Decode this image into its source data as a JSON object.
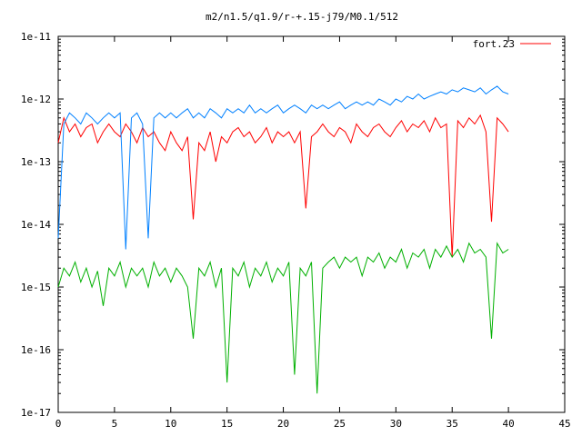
{
  "chart_data": {
    "type": "line",
    "title": "m2/n1.5/q1.9/r-+.15-j79/M0.1/512",
    "xlabel": "",
    "ylabel": "",
    "xlim": [
      0,
      45
    ],
    "ylim": [
      1e-17,
      1e-11
    ],
    "yscale": "log",
    "x_ticks": [
      0,
      5,
      10,
      15,
      20,
      25,
      30,
      35,
      40,
      45
    ],
    "x_tick_labels": [
      "0",
      "5",
      "10",
      "15",
      "20",
      "25",
      "30",
      "35",
      "40",
      "45"
    ],
    "y_ticks": [
      1e-17,
      1e-16,
      1e-15,
      1e-14,
      1e-13,
      1e-12,
      1e-11
    ],
    "y_tick_labels": [
      "1e-17",
      "1e-16",
      "1e-15",
      "1e-14",
      "1e-13",
      "1e-12",
      "1e-11"
    ],
    "grid": false,
    "legend_position": "top-right",
    "legend": [
      "fort.23"
    ],
    "colors": {
      "red": "#ff0000",
      "blue": "#0080ff",
      "green": "#00b000",
      "axis": "#000000"
    },
    "series": [
      {
        "color": "#ff0000",
        "x": [
          0,
          0.5,
          1,
          1.5,
          2,
          2.5,
          3,
          3.5,
          4,
          4.5,
          5,
          5.5,
          6,
          6.5,
          7,
          7.5,
          8,
          8.5,
          9,
          9.5,
          10,
          10.5,
          11,
          11.5,
          12,
          12.5,
          13,
          13.5,
          14,
          14.5,
          15,
          15.5,
          16,
          16.5,
          17,
          17.5,
          18,
          18.5,
          19,
          19.5,
          20,
          20.5,
          21,
          21.5,
          22,
          22.5,
          23,
          23.5,
          24,
          24.5,
          25,
          25.5,
          26,
          26.5,
          27,
          27.5,
          28,
          28.5,
          29,
          29.5,
          30,
          30.5,
          31,
          31.5,
          32,
          32.5,
          33,
          33.5,
          34,
          34.5,
          35,
          35.5,
          36,
          36.5,
          37,
          37.5,
          38,
          38.5,
          39,
          39.5,
          40
        ],
        "y": [
          2e-13,
          5e-13,
          3e-13,
          4e-13,
          2.5e-13,
          3.5e-13,
          4e-13,
          2e-13,
          3e-13,
          4e-13,
          3e-13,
          2.5e-13,
          4e-13,
          3e-13,
          2e-13,
          3.5e-13,
          2.5e-13,
          3e-13,
          2e-13,
          1.5e-13,
          3e-13,
          2e-13,
          1.5e-13,
          2.5e-13,
          1.2e-14,
          2e-13,
          1.5e-13,
          3e-13,
          1e-13,
          2.5e-13,
          2e-13,
          3e-13,
          3.5e-13,
          2.5e-13,
          3e-13,
          2e-13,
          2.5e-13,
          3.5e-13,
          2e-13,
          3e-13,
          2.5e-13,
          3e-13,
          2e-13,
          3e-13,
          1.8e-14,
          2.5e-13,
          3e-13,
          4e-13,
          3e-13,
          2.5e-13,
          3.5e-13,
          3e-13,
          2e-13,
          4e-13,
          3e-13,
          2.5e-13,
          3.5e-13,
          4e-13,
          3e-13,
          2.5e-13,
          3.5e-13,
          4.5e-13,
          3e-13,
          4e-13,
          3.5e-13,
          4.5e-13,
          3e-13,
          5e-13,
          3.5e-13,
          4e-13,
          3e-15,
          4.5e-13,
          3.5e-13,
          5e-13,
          4e-13,
          5.5e-13,
          3e-13,
          1.1e-14,
          5e-13,
          4e-13,
          3e-13
        ]
      },
      {
        "color": "#0080ff",
        "x": [
          0,
          0.5,
          1,
          1.5,
          2,
          2.5,
          3,
          3.5,
          4,
          4.5,
          5,
          5.5,
          6,
          6.5,
          7,
          7.5,
          8,
          8.5,
          9,
          9.5,
          10,
          10.5,
          11,
          11.5,
          12,
          12.5,
          13,
          13.5,
          14,
          14.5,
          15,
          15.5,
          16,
          16.5,
          17,
          17.5,
          18,
          18.5,
          19,
          19.5,
          20,
          20.5,
          21,
          21.5,
          22,
          22.5,
          23,
          23.5,
          24,
          24.5,
          25,
          25.5,
          26,
          26.5,
          27,
          27.5,
          28,
          28.5,
          29,
          29.5,
          30,
          30.5,
          31,
          31.5,
          32,
          32.5,
          33,
          33.5,
          34,
          34.5,
          35,
          35.5,
          36,
          36.5,
          37,
          37.5,
          38,
          38.5,
          39,
          39.5,
          40
        ],
        "y": [
          6e-15,
          4e-13,
          6e-13,
          5e-13,
          4e-13,
          6e-13,
          5e-13,
          4e-13,
          5e-13,
          6e-13,
          5e-13,
          6e-13,
          4e-15,
          5e-13,
          6e-13,
          4e-13,
          6e-15,
          5e-13,
          6e-13,
          5e-13,
          6e-13,
          5e-13,
          6e-13,
          7e-13,
          5e-13,
          6e-13,
          5e-13,
          7e-13,
          6e-13,
          5e-13,
          7e-13,
          6e-13,
          7e-13,
          6e-13,
          8e-13,
          6e-13,
          7e-13,
          6e-13,
          7e-13,
          8e-13,
          6e-13,
          7e-13,
          8e-13,
          7e-13,
          6e-13,
          8e-13,
          7e-13,
          8e-13,
          7e-13,
          8e-13,
          9e-13,
          7e-13,
          8e-13,
          9e-13,
          8e-13,
          9e-13,
          8e-13,
          1e-12,
          9e-13,
          8e-13,
          1e-12,
          9e-13,
          1.1e-12,
          1e-12,
          1.2e-12,
          1e-12,
          1.1e-12,
          1.2e-12,
          1.3e-12,
          1.2e-12,
          1.4e-12,
          1.3e-12,
          1.5e-12,
          1.4e-12,
          1.3e-12,
          1.5e-12,
          1.2e-12,
          1.4e-12,
          1.6e-12,
          1.3e-12,
          1.2e-12
        ]
      },
      {
        "color": "#00b000",
        "x": [
          0,
          0.5,
          1,
          1.5,
          2,
          2.5,
          3,
          3.5,
          4,
          4.5,
          5,
          5.5,
          6,
          6.5,
          7,
          7.5,
          8,
          8.5,
          9,
          9.5,
          10,
          10.5,
          11,
          11.5,
          12,
          12.5,
          13,
          13.5,
          14,
          14.5,
          15,
          15.5,
          16,
          16.5,
          17,
          17.5,
          18,
          18.5,
          19,
          19.5,
          20,
          20.5,
          21,
          21.5,
          22,
          22.5,
          23,
          23.5,
          24,
          24.5,
          25,
          25.5,
          26,
          26.5,
          27,
          27.5,
          28,
          28.5,
          29,
          29.5,
          30,
          30.5,
          31,
          31.5,
          32,
          32.5,
          33,
          33.5,
          34,
          34.5,
          35,
          35.5,
          36,
          36.5,
          37,
          37.5,
          38,
          38.5,
          39,
          39.5,
          40
        ],
        "y": [
          1e-15,
          2e-15,
          1.5e-15,
          2.5e-15,
          1.2e-15,
          2e-15,
          1e-15,
          1.8e-15,
          5e-16,
          2e-15,
          1.5e-15,
          2.5e-15,
          1e-15,
          2e-15,
          1.5e-15,
          2e-15,
          1e-15,
          2.5e-15,
          1.5e-15,
          2e-15,
          1.2e-15,
          2e-15,
          1.5e-15,
          1e-15,
          1.5e-16,
          2e-15,
          1.5e-15,
          2.5e-15,
          1e-15,
          2e-15,
          3e-17,
          2e-15,
          1.5e-15,
          2.5e-15,
          1e-15,
          2e-15,
          1.5e-15,
          2.5e-15,
          1.2e-15,
          2e-15,
          1.5e-15,
          2.5e-15,
          4e-17,
          2e-15,
          1.5e-15,
          2.5e-15,
          2e-17,
          2e-15,
          2.5e-15,
          3e-15,
          2e-15,
          3e-15,
          2.5e-15,
          3e-15,
          1.5e-15,
          3e-15,
          2.5e-15,
          3.5e-15,
          2e-15,
          3e-15,
          2.5e-15,
          4e-15,
          2e-15,
          3.5e-15,
          3e-15,
          4e-15,
          2e-15,
          4e-15,
          3e-15,
          4.5e-15,
          3e-15,
          4e-15,
          2.5e-15,
          5e-15,
          3.5e-15,
          4e-15,
          3e-15,
          1.5e-16,
          5e-15,
          3.5e-15,
          4e-15
        ]
      }
    ]
  }
}
